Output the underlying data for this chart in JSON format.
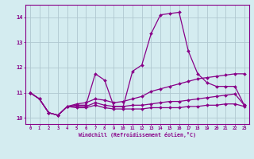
{
  "xlabel": "Windchill (Refroidissement éolien,°C)",
  "background_color": "#d4ecf0",
  "line_color": "#880088",
  "grid_color": "#b0c8d0",
  "xlim": [
    -0.5,
    23.5
  ],
  "ylim": [
    9.75,
    14.5
  ],
  "yticks": [
    10,
    11,
    12,
    13,
    14
  ],
  "xticks": [
    0,
    1,
    2,
    3,
    4,
    5,
    6,
    7,
    8,
    9,
    10,
    11,
    12,
    13,
    14,
    15,
    16,
    17,
    18,
    19,
    20,
    21,
    22,
    23
  ],
  "series": [
    [
      11.0,
      10.75,
      10.2,
      10.1,
      10.45,
      10.5,
      10.5,
      11.75,
      11.5,
      10.45,
      10.45,
      11.85,
      12.1,
      13.35,
      14.1,
      14.15,
      14.2,
      12.65,
      11.75,
      11.4,
      11.25,
      11.25,
      11.25,
      10.5
    ],
    [
      11.0,
      10.75,
      10.2,
      10.1,
      10.45,
      10.55,
      10.6,
      10.75,
      10.7,
      10.6,
      10.65,
      10.75,
      10.85,
      11.05,
      11.15,
      11.25,
      11.35,
      11.45,
      11.55,
      11.6,
      11.65,
      11.7,
      11.75,
      11.75
    ],
    [
      11.0,
      10.75,
      10.2,
      10.1,
      10.45,
      10.45,
      10.45,
      10.6,
      10.5,
      10.45,
      10.45,
      10.5,
      10.5,
      10.55,
      10.6,
      10.65,
      10.65,
      10.7,
      10.75,
      10.8,
      10.85,
      10.9,
      10.95,
      10.5
    ],
    [
      11.0,
      10.75,
      10.2,
      10.1,
      10.45,
      10.4,
      10.4,
      10.5,
      10.4,
      10.35,
      10.35,
      10.35,
      10.35,
      10.4,
      10.4,
      10.4,
      10.4,
      10.45,
      10.45,
      10.5,
      10.5,
      10.55,
      10.55,
      10.45
    ]
  ]
}
